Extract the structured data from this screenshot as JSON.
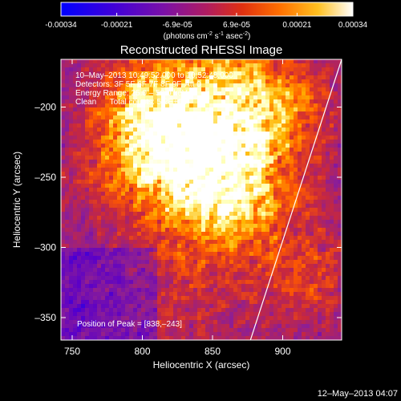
{
  "chart_data": {
    "type": "heatmap",
    "title": "Reconstructed RHESSI Image",
    "xlabel": "Heliocentric X (arcsec)",
    "ylabel": "Heliocentric Y (arcsec)",
    "xlim": [
      742,
      942
    ],
    "ylim": [
      -366,
      -166
    ],
    "x_ticks": [
      750,
      800,
      850,
      900
    ],
    "y_ticks": [
      -200,
      -250,
      -300,
      -350
    ],
    "colorbar": {
      "ticks": [
        "-0.00034",
        "-0.00021",
        "-6.9e-05",
        "6.9e-05",
        "0.00021",
        "0.00034"
      ],
      "tick_values": [
        -0.00034,
        -0.00021,
        -6.9e-05,
        6.9e-05,
        0.00021,
        0.00034
      ],
      "range": [
        -0.00034,
        0.00034
      ],
      "unit_prefix": "(photons cm",
      "unit_exp1": "-2",
      "unit_mid": " s",
      "unit_exp2": "-1",
      "unit_mid2": " asec",
      "unit_exp3": "-2",
      "unit_suffix": ")"
    },
    "annotations": {
      "line1": "10–May–2013 10:49:52.000 to 10:52:48.000",
      "line2": "Detectors: 3F 5F 6F 7F 8F 9F, Att 0",
      "line3": "Energy Range: 25.0 – 50.0 keV",
      "line4": "Clean      Total counts: 5.2E+03",
      "peak": "Position of Peak = [838,–243]"
    },
    "peak_position": [
      838,
      -243
    ],
    "limb": [
      [
        877,
        -366
      ],
      [
        942,
        -166
      ]
    ],
    "timestamp": "12–May–2013 04:07",
    "colormap": [
      "#0000ff",
      "#5a00c8",
      "#8c1e96",
      "#c8283c",
      "#ff5a00",
      "#ffb400",
      "#ffffaa",
      "#ffffff"
    ]
  }
}
